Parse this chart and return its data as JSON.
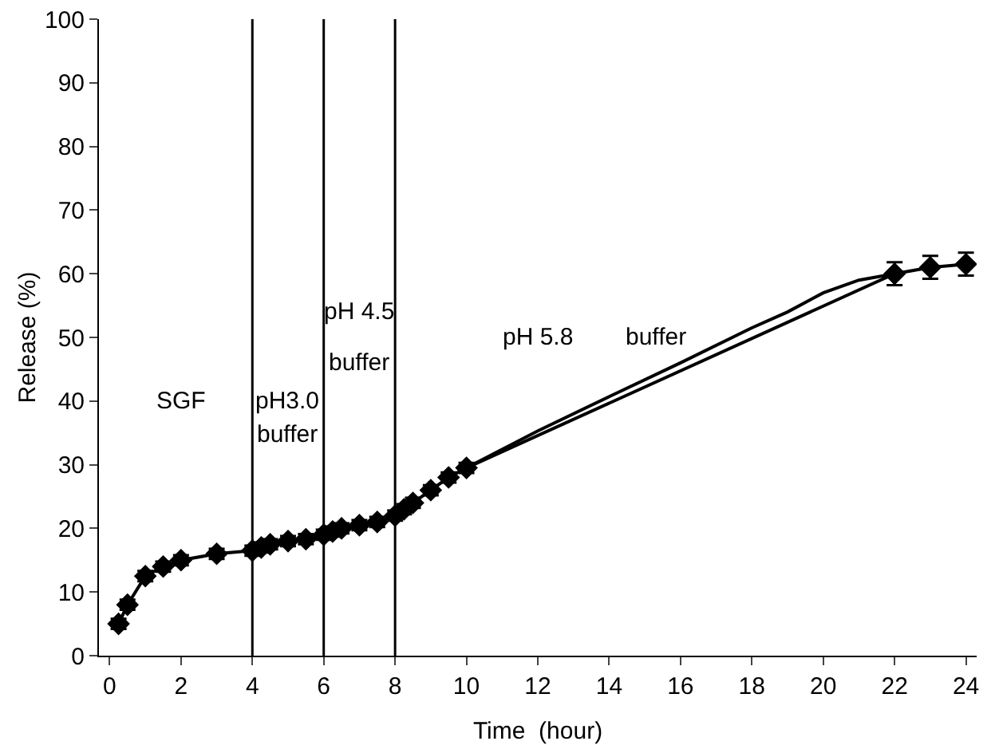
{
  "chart_data": {
    "type": "line",
    "xlabel": "Time  (hour)",
    "ylabel": "Release (%)",
    "xlim": [
      -0.3,
      24.3
    ],
    "xticks": [
      0,
      2,
      4,
      6,
      8,
      10,
      12,
      14,
      16,
      18,
      20,
      22,
      24
    ],
    "ylim": [
      0,
      100
    ],
    "yticks": [
      0,
      10,
      20,
      30,
      40,
      50,
      60,
      70,
      80,
      90,
      100
    ],
    "grid": false,
    "marker": "diamond",
    "line_style": "solid",
    "series": [
      {
        "color": "#000000",
        "x": [
          0.25,
          0.5,
          1,
          1.5,
          2,
          3,
          4,
          4.25,
          4.5,
          5,
          5.5,
          6,
          6.25,
          6.5,
          7,
          7.5,
          8,
          8.25,
          8.5,
          9,
          9.5,
          10,
          22,
          23,
          24
        ],
        "values": [
          5,
          8,
          12.5,
          14,
          15,
          16,
          16.5,
          17,
          17.5,
          18,
          18.3,
          19,
          19.5,
          20,
          20.5,
          21,
          22,
          23,
          24,
          26,
          28,
          29.5,
          60,
          61,
          61.5
        ],
        "errors": [
          0.8,
          0.8,
          0.8,
          0.8,
          0.8,
          0.8,
          0.8,
          0.8,
          0.8,
          0.8,
          0.8,
          0.8,
          0.8,
          0.8,
          0.8,
          0.8,
          0.8,
          0.8,
          0.8,
          0.8,
          0.8,
          0.8,
          1.8,
          1.8,
          1.8
        ]
      },
      {
        "color": "#000000",
        "marker": "none",
        "x": [
          10,
          12,
          14,
          16,
          18,
          19,
          20,
          21,
          22
        ],
        "values": [
          29.5,
          35.3,
          40.7,
          46,
          51.5,
          54,
          57,
          59,
          60
        ]
      }
    ],
    "ref_lines": [
      {
        "axis": "x",
        "value": 4,
        "color": "#000000"
      },
      {
        "axis": "x",
        "value": 6,
        "color": "#000000"
      },
      {
        "axis": "x",
        "value": 8,
        "color": "#000000"
      }
    ],
    "annotations": [
      "SGF",
      "pH3.0",
      "buffer",
      "pH 4.5",
      "buffer",
      "pH 5.8",
      "buffer"
    ]
  }
}
